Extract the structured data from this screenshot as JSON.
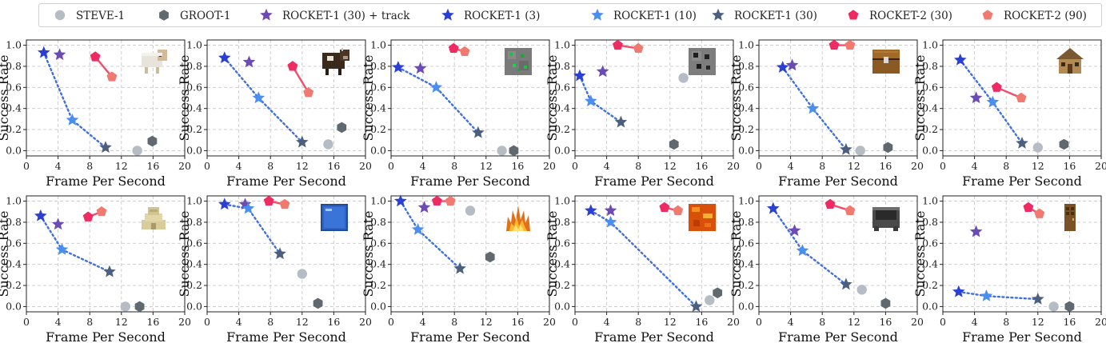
{
  "colors": {
    "steve": "#b6bcc4",
    "groot": "#616970",
    "rocket_track": "#6c4bb4",
    "rocket3": "#2a3fd4",
    "rocket10": "#4a8ef0",
    "rocket30": "#4d5f7e",
    "rocket2_30": "#ee2b62",
    "rocket2_90": "#f07a70",
    "dotted": "#3f6fe0",
    "r2line": "#f04e6a"
  },
  "legend": [
    {
      "key": "steve",
      "label": "STEVE-1",
      "marker": "circle"
    },
    {
      "key": "groot",
      "label": "GROOT-1",
      "marker": "hexagon"
    },
    {
      "key": "rocket_track",
      "label": "ROCKET-1 (30) + track",
      "marker": "star"
    },
    {
      "key": "rocket3",
      "label": "ROCKET-1 (3)",
      "marker": "star"
    },
    {
      "key": "rocket10",
      "label": "ROCKET-1 (10)",
      "marker": "star"
    },
    {
      "key": "rocket30",
      "label": "ROCKET-1 (30)",
      "marker": "star"
    },
    {
      "key": "rocket2_30",
      "label": "ROCKET-2 (30)",
      "marker": "pentagon"
    },
    {
      "key": "rocket2_90",
      "label": "ROCKET-2 (90)",
      "marker": "pentagon"
    }
  ],
  "chart_data": [
    {
      "type": "scatter",
      "icon": "sheep-icon",
      "xlabel": "Frame Per Second",
      "ylabel": "Success Rate",
      "xlim": [
        0,
        20
      ],
      "ylim": [
        -0.05,
        1.05
      ],
      "xticks": [
        0,
        4,
        8,
        12,
        16,
        20
      ],
      "yticks": [
        0.0,
        0.2,
        0.4,
        0.6,
        0.8,
        1.0
      ],
      "points": {
        "rocket3": [
          2.2,
          0.93
        ],
        "rocket10": [
          5.8,
          0.29
        ],
        "rocket30": [
          10.0,
          0.03
        ],
        "rocket_track": [
          4.2,
          0.91
        ],
        "rocket2_30": [
          8.7,
          0.89
        ],
        "rocket2_90": [
          10.8,
          0.7
        ],
        "steve": [
          14.0,
          0.0
        ],
        "groot": [
          15.9,
          0.09
        ]
      }
    },
    {
      "type": "scatter",
      "icon": "cow-icon",
      "xlabel": "Frame Per Second",
      "ylabel": "Success Rate",
      "xlim": [
        0,
        20
      ],
      "ylim": [
        -0.05,
        1.05
      ],
      "xticks": [
        0,
        4,
        8,
        12,
        16,
        20
      ],
      "yticks": [
        0.0,
        0.2,
        0.4,
        0.6,
        0.8,
        1.0
      ],
      "points": {
        "rocket3": [
          2.2,
          0.88
        ],
        "rocket10": [
          6.5,
          0.5
        ],
        "rocket30": [
          12.0,
          0.08
        ],
        "rocket_track": [
          5.3,
          0.84
        ],
        "rocket2_30": [
          10.8,
          0.8
        ],
        "rocket2_90": [
          12.8,
          0.55
        ],
        "steve": [
          15.3,
          0.06
        ],
        "groot": [
          17.0,
          0.22
        ]
      }
    },
    {
      "type": "scatter",
      "icon": "emerald-ore-icon",
      "xlabel": "Frame Per Second",
      "ylabel": "Success Rate",
      "xlim": [
        0,
        20
      ],
      "ylim": [
        -0.05,
        1.05
      ],
      "xticks": [
        0,
        4,
        8,
        12,
        16,
        20
      ],
      "yticks": [
        0.0,
        0.2,
        0.4,
        0.6,
        0.8,
        1.0
      ],
      "points": {
        "rocket3": [
          0.9,
          0.79
        ],
        "rocket10": [
          5.7,
          0.6
        ],
        "rocket30": [
          11.0,
          0.17
        ],
        "rocket_track": [
          3.7,
          0.78
        ],
        "rocket2_30": [
          7.9,
          0.97
        ],
        "rocket2_90": [
          9.3,
          0.94
        ],
        "steve": [
          14.0,
          0.0
        ],
        "groot": [
          15.5,
          0.0
        ]
      }
    },
    {
      "type": "scatter",
      "icon": "coal-ore-icon",
      "xlabel": "Frame Per Second",
      "ylabel": "Success Rate",
      "xlim": [
        0,
        20
      ],
      "ylim": [
        -0.05,
        1.05
      ],
      "xticks": [
        0,
        4,
        8,
        12,
        16,
        20
      ],
      "yticks": [
        0.0,
        0.2,
        0.4,
        0.6,
        0.8,
        1.0
      ],
      "points": {
        "rocket3": [
          0.6,
          0.71
        ],
        "rocket10": [
          2.0,
          0.47
        ],
        "rocket30": [
          5.8,
          0.27
        ],
        "rocket_track": [
          3.5,
          0.75
        ],
        "rocket2_30": [
          5.4,
          1.0
        ],
        "rocket2_90": [
          8.0,
          0.97
        ],
        "steve": [
          13.7,
          0.69
        ],
        "groot": [
          12.5,
          0.06
        ]
      }
    },
    {
      "type": "scatter",
      "icon": "chest-icon",
      "xlabel": "Frame Per Second",
      "ylabel": "Success Rate",
      "xlim": [
        0,
        20
      ],
      "ylim": [
        -0.05,
        1.05
      ],
      "xticks": [
        0,
        4,
        8,
        12,
        16,
        20
      ],
      "yticks": [
        0.0,
        0.2,
        0.4,
        0.6,
        0.8,
        1.0
      ],
      "points": {
        "rocket3": [
          3.0,
          0.79
        ],
        "rocket10": [
          6.8,
          0.4
        ],
        "rocket30": [
          11.0,
          0.01
        ],
        "rocket_track": [
          4.2,
          0.81
        ],
        "rocket2_30": [
          9.5,
          1.0
        ],
        "rocket2_90": [
          11.5,
          1.0
        ],
        "steve": [
          12.8,
          0.0
        ],
        "groot": [
          16.3,
          0.03
        ]
      }
    },
    {
      "type": "scatter",
      "icon": "village-house-icon",
      "xlabel": "Frame Per Second",
      "ylabel": "Success Rate",
      "xlim": [
        0,
        20
      ],
      "ylim": [
        -0.05,
        1.05
      ],
      "xticks": [
        0,
        4,
        8,
        12,
        16,
        20
      ],
      "yticks": [
        0.0,
        0.2,
        0.4,
        0.6,
        0.8,
        1.0
      ],
      "points": {
        "rocket3": [
          2.2,
          0.86
        ],
        "rocket10": [
          6.3,
          0.46
        ],
        "rocket30": [
          10.0,
          0.07
        ],
        "rocket_track": [
          4.2,
          0.5
        ],
        "rocket2_30": [
          6.8,
          0.6
        ],
        "rocket2_90": [
          9.9,
          0.5
        ],
        "steve": [
          12.0,
          0.03
        ],
        "groot": [
          15.3,
          0.06
        ]
      }
    },
    {
      "type": "scatter",
      "icon": "sandstone-temple-icon",
      "xlabel": "Frame Per Second",
      "ylabel": "Success Rate",
      "xlim": [
        0,
        20
      ],
      "ylim": [
        -0.05,
        1.05
      ],
      "xticks": [
        0,
        4,
        8,
        12,
        16,
        20
      ],
      "yticks": [
        0.0,
        0.2,
        0.4,
        0.6,
        0.8,
        1.0
      ],
      "points": {
        "rocket3": [
          1.8,
          0.86
        ],
        "rocket10": [
          4.5,
          0.54
        ],
        "rocket30": [
          10.5,
          0.33
        ],
        "rocket_track": [
          4.0,
          0.78
        ],
        "rocket2_30": [
          7.8,
          0.85
        ],
        "rocket2_90": [
          9.5,
          0.9
        ],
        "steve": [
          12.5,
          0.0
        ],
        "groot": [
          14.3,
          0.0
        ]
      }
    },
    {
      "type": "scatter",
      "icon": "glass-block-icon",
      "xlabel": "Frame Per Second",
      "ylabel": "Success Rate",
      "xlim": [
        0,
        20
      ],
      "ylim": [
        -0.05,
        1.05
      ],
      "xticks": [
        0,
        4,
        8,
        12,
        16,
        20
      ],
      "yticks": [
        0.0,
        0.2,
        0.4,
        0.6,
        0.8,
        1.0
      ],
      "points": {
        "rocket3": [
          2.2,
          0.97
        ],
        "rocket10": [
          5.2,
          0.93
        ],
        "rocket30": [
          9.2,
          0.5
        ],
        "rocket_track": [
          4.8,
          0.97
        ],
        "rocket2_30": [
          7.8,
          1.0
        ],
        "rocket2_90": [
          9.8,
          0.97
        ],
        "steve": [
          12.0,
          0.31
        ],
        "groot": [
          14.0,
          0.03
        ]
      }
    },
    {
      "type": "scatter",
      "icon": "fire-icon",
      "xlabel": "Frame Per Second",
      "ylabel": "Success Rate",
      "xlim": [
        0,
        20
      ],
      "ylim": [
        -0.05,
        1.05
      ],
      "xticks": [
        0,
        4,
        8,
        12,
        16,
        20
      ],
      "yticks": [
        0.0,
        0.2,
        0.4,
        0.6,
        0.8,
        1.0
      ],
      "points": {
        "rocket3": [
          1.2,
          1.0
        ],
        "rocket10": [
          3.4,
          0.73
        ],
        "rocket30": [
          8.7,
          0.36
        ],
        "rocket_track": [
          4.2,
          0.94
        ],
        "rocket2_30": [
          5.8,
          1.0
        ],
        "rocket2_90": [
          7.5,
          1.0
        ],
        "steve": [
          10.0,
          0.91
        ],
        "groot": [
          12.5,
          0.47
        ]
      }
    },
    {
      "type": "scatter",
      "icon": "lava-block-icon",
      "xlabel": "Frame Per Second",
      "ylabel": "Success Rate",
      "xlim": [
        0,
        20
      ],
      "ylim": [
        -0.05,
        1.05
      ],
      "xticks": [
        0,
        4,
        8,
        12,
        16,
        20
      ],
      "yticks": [
        0.0,
        0.2,
        0.4,
        0.6,
        0.8,
        1.0
      ],
      "points": {
        "rocket3": [
          2.0,
          0.91
        ],
        "rocket10": [
          4.5,
          0.8
        ],
        "rocket30": [
          15.3,
          0.0
        ],
        "rocket_track": [
          4.5,
          0.91
        ],
        "rocket2_30": [
          11.3,
          0.94
        ],
        "rocket2_90": [
          13.0,
          0.91
        ],
        "steve": [
          17.0,
          0.06
        ],
        "groot": [
          18.0,
          0.13
        ]
      }
    },
    {
      "type": "scatter",
      "icon": "cauldron-icon",
      "xlabel": "Frame Per Second",
      "ylabel": "Success Rate",
      "xlim": [
        0,
        20
      ],
      "ylim": [
        -0.05,
        1.05
      ],
      "xticks": [
        0,
        4,
        8,
        12,
        16,
        20
      ],
      "yticks": [
        0.0,
        0.2,
        0.4,
        0.6,
        0.8,
        1.0
      ],
      "points": {
        "rocket3": [
          1.8,
          0.93
        ],
        "rocket10": [
          5.5,
          0.53
        ],
        "rocket30": [
          11.0,
          0.21
        ],
        "rocket_track": [
          4.5,
          0.72
        ],
        "rocket2_30": [
          9.0,
          0.97
        ],
        "rocket2_90": [
          11.5,
          0.91
        ],
        "steve": [
          13.0,
          0.16
        ],
        "groot": [
          16.0,
          0.03
        ]
      }
    },
    {
      "type": "scatter",
      "icon": "wooden-door-icon",
      "xlabel": "Frame Per Second",
      "ylabel": "Success Rate",
      "xlim": [
        0,
        20
      ],
      "ylim": [
        -0.05,
        1.05
      ],
      "xticks": [
        0,
        4,
        8,
        12,
        16,
        20
      ],
      "yticks": [
        0.0,
        0.2,
        0.4,
        0.6,
        0.8,
        1.0
      ],
      "points": {
        "rocket3": [
          2.0,
          0.14
        ],
        "rocket10": [
          5.5,
          0.1
        ],
        "rocket30": [
          12.0,
          0.07
        ],
        "rocket_track": [
          4.2,
          0.71
        ],
        "rocket2_30": [
          10.8,
          0.94
        ],
        "rocket2_90": [
          12.2,
          0.88
        ],
        "steve": [
          14.0,
          0.0
        ],
        "groot": [
          16.0,
          0.0
        ]
      }
    }
  ]
}
